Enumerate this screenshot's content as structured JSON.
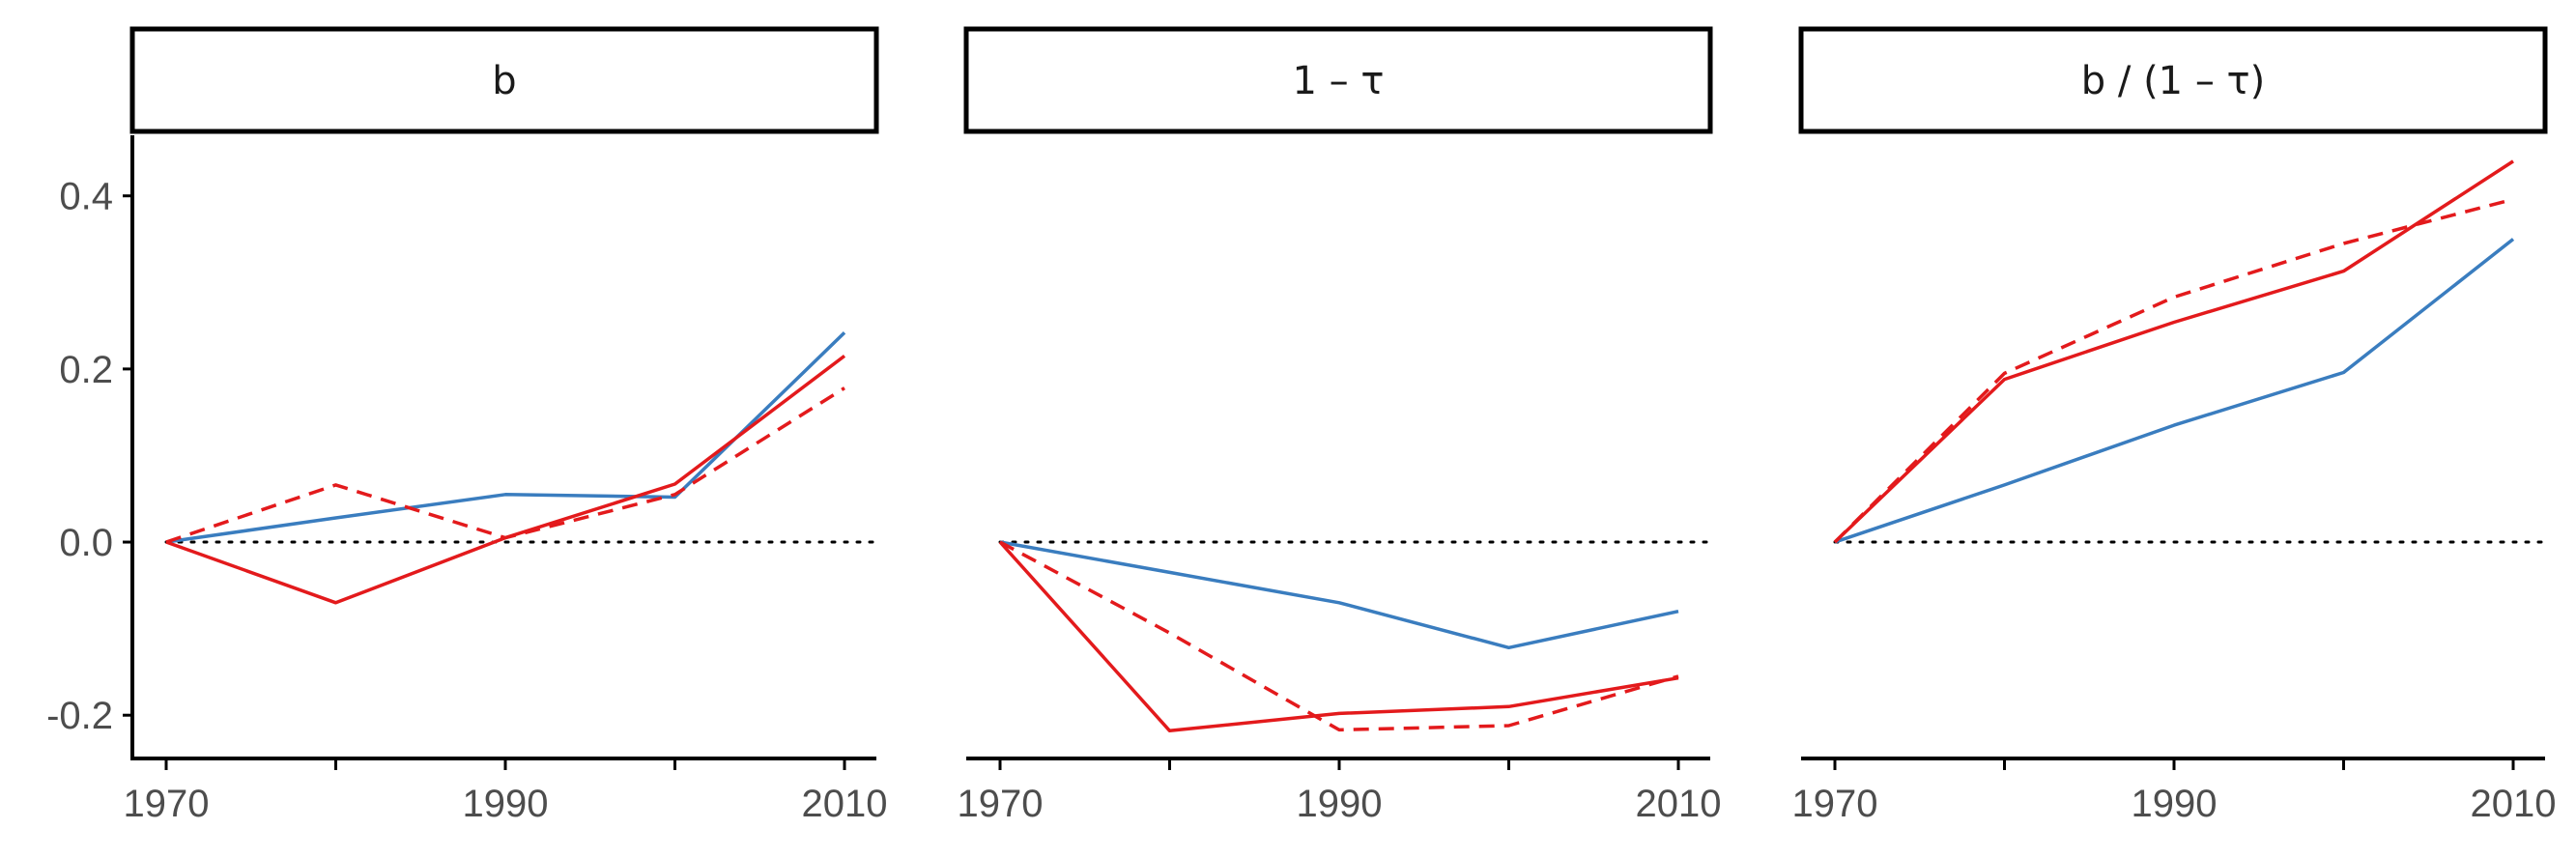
{
  "chart_data": {
    "type": "line",
    "ylim": [
      -0.25,
      0.47
    ],
    "xlim": [
      1968,
      2012
    ],
    "y_ticks": [
      -0.2,
      0.0,
      0.2,
      0.4
    ],
    "y_tick_labels": [
      "-0.2",
      "0.0",
      "0.2",
      "0.4"
    ],
    "x_ticks": [
      1970,
      1980,
      1990,
      2000,
      2010
    ],
    "x_tick_labels": [
      "1970",
      "1990",
      "2010"
    ],
    "reference_line": {
      "y": 0,
      "style": "dotted",
      "color": "#000000"
    },
    "grid": false,
    "legend": "none",
    "x": [
      1970,
      1980,
      1990,
      2000,
      2010
    ],
    "panels": [
      {
        "title": "b",
        "series": [
          {
            "color": "#3a7dbf",
            "dash": "solid",
            "values": [
              0.0,
              0.028,
              0.055,
              0.052,
              0.242
            ]
          },
          {
            "color": "#e31a1c",
            "dash": "dashed",
            "values": [
              0.0,
              0.066,
              0.005,
              0.055,
              0.178
            ]
          },
          {
            "color": "#e31a1c",
            "dash": "solid",
            "values": [
              0.0,
              -0.07,
              0.005,
              0.067,
              0.215
            ]
          }
        ]
      },
      {
        "title": "1 – τ",
        "series": [
          {
            "color": "#3a7dbf",
            "dash": "solid",
            "values": [
              0.0,
              -0.035,
              -0.07,
              -0.122,
              -0.08
            ]
          },
          {
            "color": "#e31a1c",
            "dash": "dashed",
            "values": [
              0.0,
              -0.105,
              -0.217,
              -0.212,
              -0.155
            ]
          },
          {
            "color": "#e31a1c",
            "dash": "solid",
            "values": [
              0.0,
              -0.218,
              -0.198,
              -0.19,
              -0.157
            ]
          }
        ]
      },
      {
        "title": "b / (1 – τ)",
        "series": [
          {
            "color": "#3a7dbf",
            "dash": "solid",
            "values": [
              0.0,
              0.066,
              0.135,
              0.196,
              0.35
            ]
          },
          {
            "color": "#e31a1c",
            "dash": "dashed",
            "values": [
              0.0,
              0.195,
              0.283,
              0.345,
              0.396
            ]
          },
          {
            "color": "#e31a1c",
            "dash": "solid",
            "values": [
              0.0,
              0.188,
              0.254,
              0.313,
              0.44
            ]
          }
        ]
      }
    ]
  }
}
